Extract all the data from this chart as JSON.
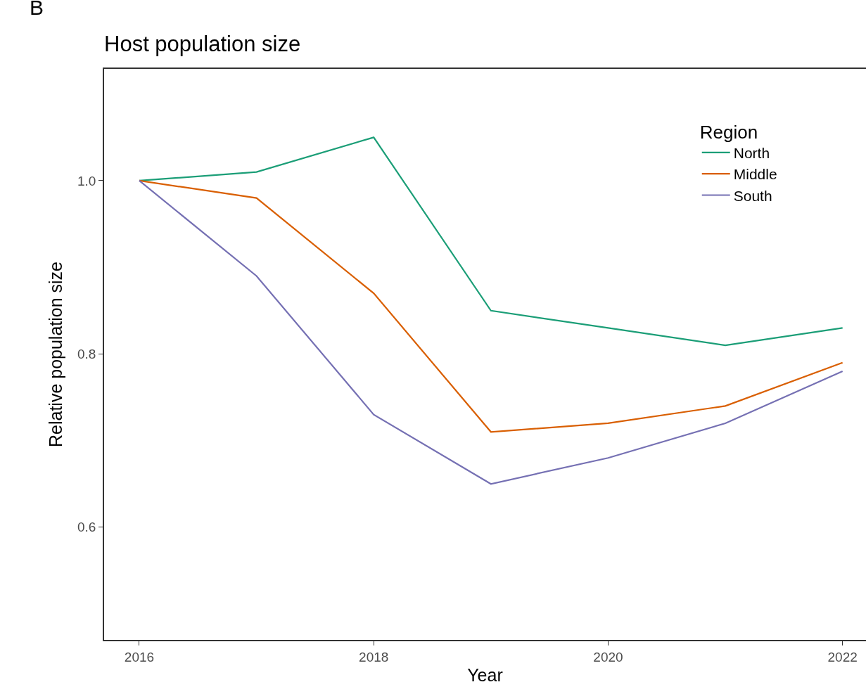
{
  "chart_data": {
    "type": "line",
    "title": "Host population size",
    "xlabel": "Year",
    "ylabel": "Relative population size",
    "legend_title": "Region",
    "annotations": [
      "B"
    ],
    "x": [
      2016,
      2017,
      2018,
      2019,
      2020,
      2021,
      2022
    ],
    "series": [
      {
        "name": "North",
        "color": "#1b9e77",
        "values": [
          1.0,
          1.01,
          1.05,
          0.85,
          0.83,
          0.81,
          0.83
        ]
      },
      {
        "name": "Middle",
        "color": "#d95f02",
        "values": [
          1.0,
          0.98,
          0.87,
          0.71,
          0.72,
          0.74,
          0.79
        ]
      },
      {
        "name": "South",
        "color": "#7570b3",
        "values": [
          1.0,
          0.89,
          0.73,
          0.65,
          0.68,
          0.72,
          0.78
        ]
      }
    ],
    "xlim": [
      2015.7,
      2022.2
    ],
    "xticks": [
      2016,
      2018,
      2020,
      2022
    ],
    "ylim": [
      0.47,
      1.129
    ],
    "yticks": [
      0.6,
      0.8,
      {
        "value": 1,
        "label": "1.0"
      }
    ],
    "grid": false,
    "legend": "top right",
    "marker": "none",
    "line_style": "solid"
  }
}
